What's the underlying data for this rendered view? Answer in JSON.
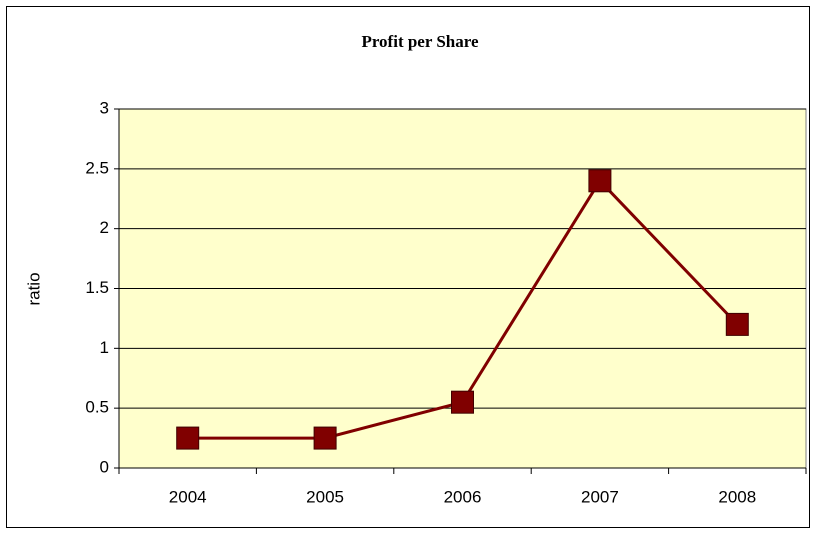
{
  "chart_data": {
    "type": "line",
    "title": "Profit per Share",
    "y_label": "ratio",
    "categories": [
      "2004",
      "2005",
      "2006",
      "2007",
      "2008"
    ],
    "series": [
      {
        "name": "Profit per Share",
        "color": "#800000",
        "values": [
          0.25,
          0.25,
          0.55,
          2.4,
          1.2
        ]
      }
    ],
    "ylim": [
      0,
      3
    ],
    "yticks": [
      0,
      0.5,
      1,
      1.5,
      2,
      2.5,
      3
    ],
    "grid": true,
    "plot_background": "#ffffcc"
  }
}
